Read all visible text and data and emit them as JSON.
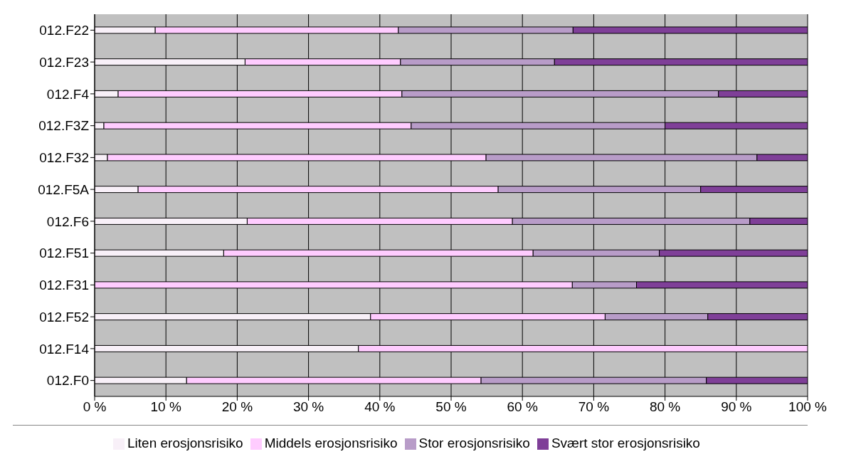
{
  "chart_data": {
    "type": "bar",
    "orientation": "horizontal",
    "stacked": true,
    "categories": [
      "012.F22",
      "012.F23",
      "012.F4",
      "012.F3Z",
      "012.F32",
      "012.F5A",
      "012.F6",
      "012.F51",
      "012.F31",
      "012.F52",
      "012.F14",
      "012.F0"
    ],
    "series": [
      {
        "name": "Liten erosjonsrisiko",
        "color": "#f8f0f8",
        "values": [
          8.5,
          21.1,
          3.3,
          1.3,
          1.8,
          6.1,
          21.4,
          18.1,
          0,
          38.7,
          37.0,
          12.9
        ]
      },
      {
        "name": "Middels erosjonsrisiko",
        "color": "#ffccff",
        "values": [
          34.1,
          21.8,
          39.8,
          43.1,
          53.1,
          50.5,
          37.2,
          43.4,
          67.0,
          32.9,
          63.0,
          41.3
        ]
      },
      {
        "name": "Stor erosjonsrisiko",
        "color": "#b89cc8",
        "values": [
          24.5,
          21.6,
          44.4,
          35.6,
          38.0,
          28.4,
          33.3,
          17.7,
          9.0,
          14.4,
          0,
          31.6
        ]
      },
      {
        "name": "Svært stor erosjonsrisiko",
        "color": "#7f3f98",
        "values": [
          32.9,
          35.5,
          12.5,
          20.0,
          7.1,
          15.0,
          8.1,
          20.8,
          24.0,
          14.0,
          0,
          14.2
        ]
      }
    ],
    "xlim": [
      0,
      100
    ],
    "xticks": [
      {
        "value": 0,
        "label": "0 %"
      },
      {
        "value": 10,
        "label": "10 %"
      },
      {
        "value": 20,
        "label": "20 %"
      },
      {
        "value": 30,
        "label": "30 %"
      },
      {
        "value": 40,
        "label": "40 %"
      },
      {
        "value": 50,
        "label": "50 %"
      },
      {
        "value": 60,
        "label": "60 %"
      },
      {
        "value": 70,
        "label": "70 %"
      },
      {
        "value": 80,
        "label": "80 %"
      },
      {
        "value": 90,
        "label": "90 %"
      },
      {
        "value": 100,
        "label": "100 %"
      }
    ],
    "grid": "x",
    "legend": "bottom"
  }
}
